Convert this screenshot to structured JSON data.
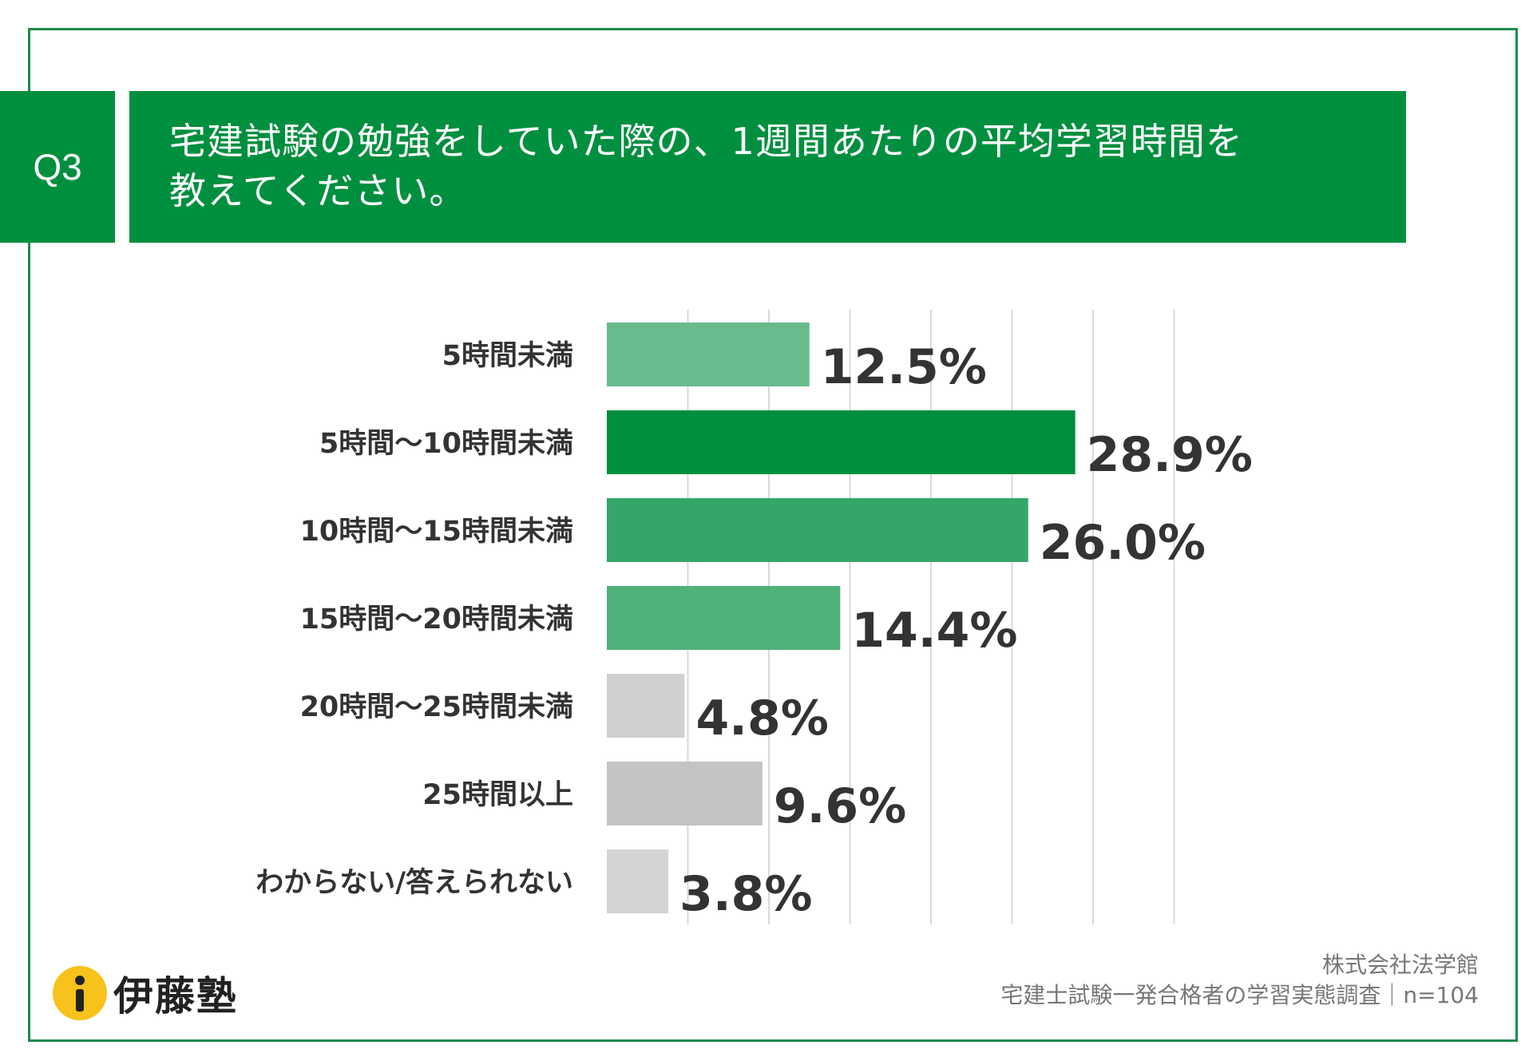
{
  "question": {
    "number": "Q3",
    "line1": "宅建試験の勉強をしていた際の、1週間あたりの平均学習時間を",
    "line2": "教えてください。"
  },
  "chart_data": {
    "type": "bar",
    "orientation": "horizontal",
    "categories": [
      "5時間未満",
      "5時間〜10時間未満",
      "10時間〜15時間未満",
      "15時間〜20時間未満",
      "20時間〜25時間未満",
      "25時間以上",
      "わからない/答えられない"
    ],
    "values": [
      12.5,
      28.9,
      26.0,
      14.4,
      4.8,
      9.6,
      3.8
    ],
    "value_labels": [
      "12.5%",
      "28.9%",
      "26.0%",
      "14.4%",
      "4.8%",
      "9.6%",
      "3.8%"
    ],
    "colors": [
      "#67bb8d",
      "#008f3f",
      "#35a66a",
      "#50b27b",
      "#d0d0d0",
      "#c4c4c4",
      "#d4d4d4"
    ],
    "xlim": [
      0,
      35
    ],
    "grid": true,
    "grid_color": "#d9d9d9"
  },
  "logo": {
    "text": "伊藤塾",
    "icon": "info-i-icon"
  },
  "source": {
    "line1": "株式会社法学館",
    "line2": "宅建士試験一発合格者の学習実態調査｜n=104"
  },
  "colors": {
    "brand_green": "#008f3f",
    "frame": "#1f8a4c",
    "logo_yellow": "#f7c21b"
  }
}
